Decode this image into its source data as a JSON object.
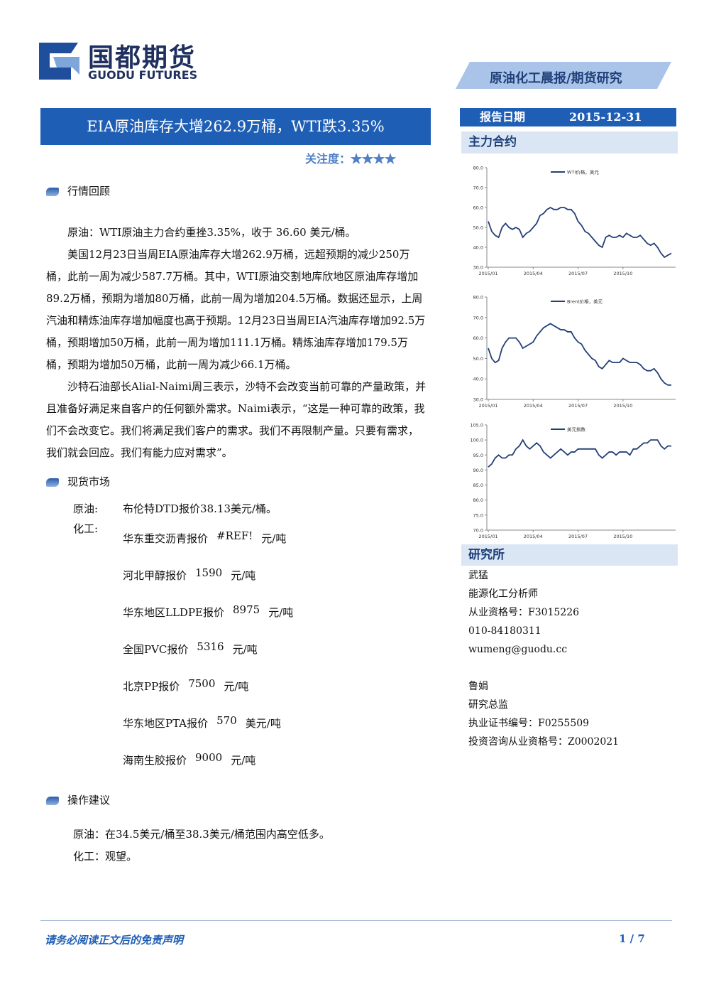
{
  "header": {
    "logo_cn": "国都期货",
    "logo_en": "GUODU FUTURES",
    "banner": "原油化工晨报/期货研究"
  },
  "title": "EIA原油库存大增262.9万桶，WTI跌3.35%",
  "attention": {
    "label": "关注度：",
    "stars": "★★★★"
  },
  "report_date": {
    "label": "报告日期",
    "value": "2015-12-31"
  },
  "contracts_heading": "主力合约",
  "chart_data": [
    {
      "type": "line",
      "series": [
        {
          "name": "WTI价格，美元",
          "color": "#233f78",
          "values": [
            53,
            48,
            46,
            45,
            50,
            52,
            50,
            49,
            50,
            49,
            45,
            47,
            48,
            50,
            52,
            56,
            57,
            59,
            60,
            59,
            59,
            60,
            60,
            59,
            59,
            57,
            53,
            51,
            48,
            47,
            45,
            43,
            41,
            40,
            45,
            46,
            45,
            45,
            46,
            45,
            47,
            46,
            45,
            45,
            46,
            44,
            42,
            41,
            42,
            40,
            37,
            35,
            36,
            37
          ]
        }
      ],
      "categories": [
        "2015/01",
        null,
        null,
        null,
        null,
        null,
        null,
        null,
        null,
        null,
        null,
        null,
        null,
        "2015/04",
        null,
        null,
        null,
        null,
        null,
        null,
        null,
        null,
        null,
        null,
        null,
        null,
        "2015/07",
        null,
        null,
        null,
        null,
        null,
        null,
        null,
        null,
        null,
        null,
        null,
        null,
        "2015/10",
        null,
        null,
        null,
        null,
        null,
        null,
        null,
        null,
        null,
        null,
        null,
        null,
        null,
        null
      ],
      "ylim": [
        30,
        80
      ],
      "yticks": [
        {
          "value": 30,
          "label": "30.0"
        },
        {
          "value": 40,
          "label": "40.0"
        },
        {
          "value": 50,
          "label": "50.0"
        },
        {
          "value": 60,
          "label": "60.0"
        },
        {
          "value": 70,
          "label": "70.0"
        },
        {
          "value": 80,
          "label": "80.0"
        }
      ]
    },
    {
      "type": "line",
      "series": [
        {
          "name": "Brent价格，美元",
          "color": "#233f78",
          "values": [
            55,
            50,
            48,
            49,
            55,
            58,
            60,
            60,
            60,
            58,
            55,
            56,
            57,
            58,
            61,
            63,
            65,
            66,
            67,
            66,
            65,
            64,
            64,
            63,
            63,
            60,
            58,
            57,
            54,
            52,
            50,
            49,
            46,
            45,
            47,
            49,
            48,
            48,
            48,
            50,
            49,
            48,
            48,
            48,
            47,
            45,
            44,
            44,
            45,
            43,
            40,
            38,
            37,
            37
          ]
        }
      ],
      "categories": [
        "2015/01",
        null,
        null,
        null,
        null,
        null,
        null,
        null,
        null,
        null,
        null,
        null,
        null,
        "2015/04",
        null,
        null,
        null,
        null,
        null,
        null,
        null,
        null,
        null,
        null,
        null,
        null,
        "2015/07",
        null,
        null,
        null,
        null,
        null,
        null,
        null,
        null,
        null,
        null,
        null,
        null,
        "2015/10",
        null,
        null,
        null,
        null,
        null,
        null,
        null,
        null,
        null,
        null,
        null,
        null,
        null,
        null
      ],
      "ylim": [
        30,
        80
      ],
      "yticks": [
        {
          "value": 30,
          "label": "30.0"
        },
        {
          "value": 40,
          "label": "40.0"
        },
        {
          "value": 50,
          "label": "50.0"
        },
        {
          "value": 60,
          "label": "60.0"
        },
        {
          "value": 70,
          "label": "70.0"
        },
        {
          "value": 80,
          "label": "80.0"
        }
      ]
    },
    {
      "type": "line",
      "series": [
        {
          "name": "美元指数",
          "color": "#233f78",
          "values": [
            91,
            92,
            94,
            95,
            94,
            94,
            95,
            95,
            97,
            98,
            100,
            98,
            97,
            98,
            99,
            98,
            96,
            95,
            94,
            95,
            96,
            97,
            96,
            95,
            96,
            96,
            97,
            97,
            97,
            97,
            97,
            97,
            95,
            94,
            95,
            96,
            96,
            95,
            96,
            96,
            96,
            95,
            97,
            97,
            98,
            99,
            99,
            100,
            100,
            100,
            98,
            97,
            98,
            98
          ]
        }
      ],
      "categories": [
        "2015/01",
        null,
        null,
        null,
        null,
        null,
        null,
        null,
        null,
        null,
        null,
        null,
        null,
        "2015/04",
        null,
        null,
        null,
        null,
        null,
        null,
        null,
        null,
        null,
        null,
        null,
        null,
        "2015/07",
        null,
        null,
        null,
        null,
        null,
        null,
        null,
        null,
        null,
        null,
        null,
        null,
        "2015/10",
        null,
        null,
        null,
        null,
        null,
        null,
        null,
        null,
        null,
        null,
        null,
        null,
        null,
        null
      ],
      "ylim": [
        70,
        105
      ],
      "yticks": [
        {
          "value": 70,
          "label": "70.0"
        },
        {
          "value": 75,
          "label": "75.0"
        },
        {
          "value": 80,
          "label": "80.0"
        },
        {
          "value": 85,
          "label": "85.0"
        },
        {
          "value": 90,
          "label": "90.0"
        },
        {
          "value": 95,
          "label": "95.0"
        },
        {
          "value": 100,
          "label": "100.0"
        },
        {
          "value": 105,
          "label": "105.0"
        }
      ]
    }
  ],
  "sections": [
    {
      "heading": "行情回顾",
      "paragraphs": [
        "原油：WTI原油主力合约重挫3.35%，收于 36.60 美元/桶。",
        "美国12月23日当周EIA原油库存大增262.9万桶，远超预期的减少250万桶，此前一周为减少587.7万桶。其中，WTI原油交割地库欣地区原油库存增加89.2万桶，预期为增加80万桶，此前一周为增加204.5万桶。数据还显示，上周汽油和精炼油库存增加幅度也高于预期。12月23日当周EIA汽油库存增加92.5万桶，预期增加50万桶，此前一周为增加111.1万桶。精炼油库存增加179.5万桶，预期为增加50万桶，此前一周为减少66.1万桶。",
        "沙特石油部长Alial-Naimi周三表示，沙特不会改变当前可靠的产量政策，并且准备好满足来自客户的任何额外需求。Naimi表示，“这是一种可靠的政策，我们不会改变它。我们将满足我们客户的需求。我们不再限制产量。只要有需求，我们就会回应。我们有能力应对需求”。"
      ]
    },
    {
      "heading": "现货市场",
      "crude_label": "原油:",
      "crude_text": "布伦特DTD报价38.13美元/桶。",
      "chem_label": "化工:",
      "items": [
        {
          "name": "华东重交沥青报价",
          "price": "#REF!",
          "unit": "元/吨"
        },
        {
          "name": "河北甲醇报价",
          "price": 1590,
          "unit": "元/吨"
        },
        {
          "name": "华东地区LLDPE报价",
          "price": 8975,
          "unit": "元/吨"
        },
        {
          "name": "全国PVC报价",
          "price": 5316,
          "unit": "元/吨"
        },
        {
          "name": "北京PP报价",
          "price": 7500,
          "unit": "元/吨"
        },
        {
          "name": "华东地区PTA报价",
          "price": 570,
          "unit": "美元/吨"
        },
        {
          "name": "海南生胶报价",
          "price": 9000,
          "unit": "元/吨"
        }
      ]
    },
    {
      "heading": "操作建议",
      "paragraphs": [
        "原油：在34.5美元/桶至38.3美元/桶范围内高空低多。",
        "化工：观望。"
      ]
    }
  ],
  "research": {
    "heading": "研究所",
    "people": [
      [
        "武猛",
        "能源化工分析师",
        "从业资格号：F3015226",
        "010-84180311",
        "wumeng@guodu.cc"
      ],
      [
        "鲁娟",
        "研究总监",
        "执业证书编号：F0255509",
        "投资咨询从业资格号：Z0002021"
      ]
    ]
  },
  "footer": {
    "disclaimer": "请务必阅读正文后的免责声明",
    "page": "1 / 7"
  }
}
